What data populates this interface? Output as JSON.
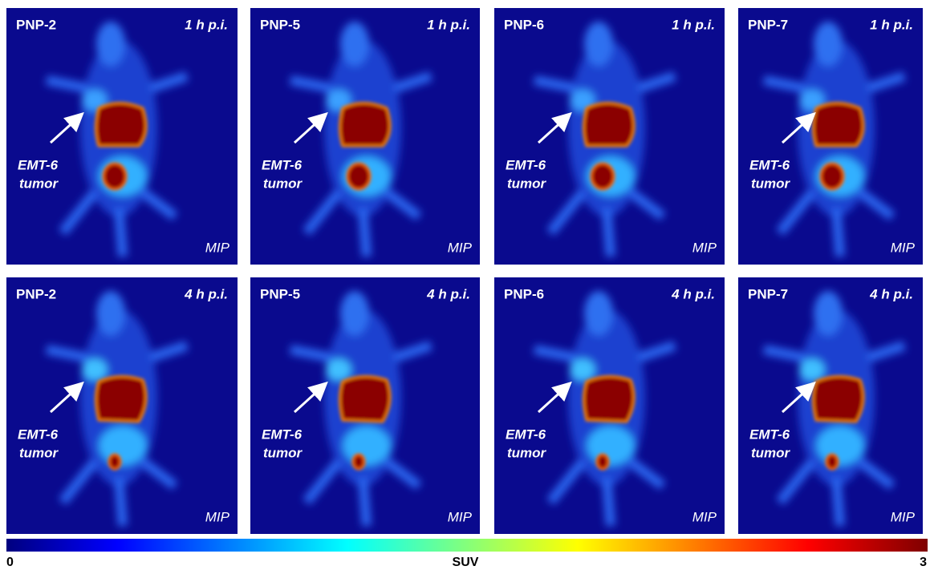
{
  "panels": [
    {
      "tracer": "PNP-2",
      "time": "1 h p.i.",
      "annotation_line1": "EMT-6",
      "annotation_line2": "tumor",
      "view": "MIP"
    },
    {
      "tracer": "PNP-5",
      "time": "1 h p.i.",
      "annotation_line1": "EMT-6",
      "annotation_line2": "tumor",
      "view": "MIP"
    },
    {
      "tracer": "PNP-6",
      "time": "1 h p.i.",
      "annotation_line1": "EMT-6",
      "annotation_line2": "tumor",
      "view": "MIP"
    },
    {
      "tracer": "PNP-7",
      "time": "1 h p.i.",
      "annotation_line1": "EMT-6",
      "annotation_line2": "tumor",
      "view": "MIP"
    },
    {
      "tracer": "PNP-2",
      "time": "4 h p.i.",
      "annotation_line1": "EMT-6",
      "annotation_line2": "tumor",
      "view": "MIP"
    },
    {
      "tracer": "PNP-5",
      "time": "4 h p.i.",
      "annotation_line1": "EMT-6",
      "annotation_line2": "tumor",
      "view": "MIP"
    },
    {
      "tracer": "PNP-6",
      "time": "4 h p.i.",
      "annotation_line1": "EMT-6",
      "annotation_line2": "tumor",
      "view": "MIP"
    },
    {
      "tracer": "PNP-7",
      "time": "4 h p.i.",
      "annotation_line1": "EMT-6",
      "annotation_line2": "tumor",
      "view": "MIP"
    }
  ],
  "colorbar": {
    "min": "0",
    "label": "SUV",
    "max": "3"
  }
}
